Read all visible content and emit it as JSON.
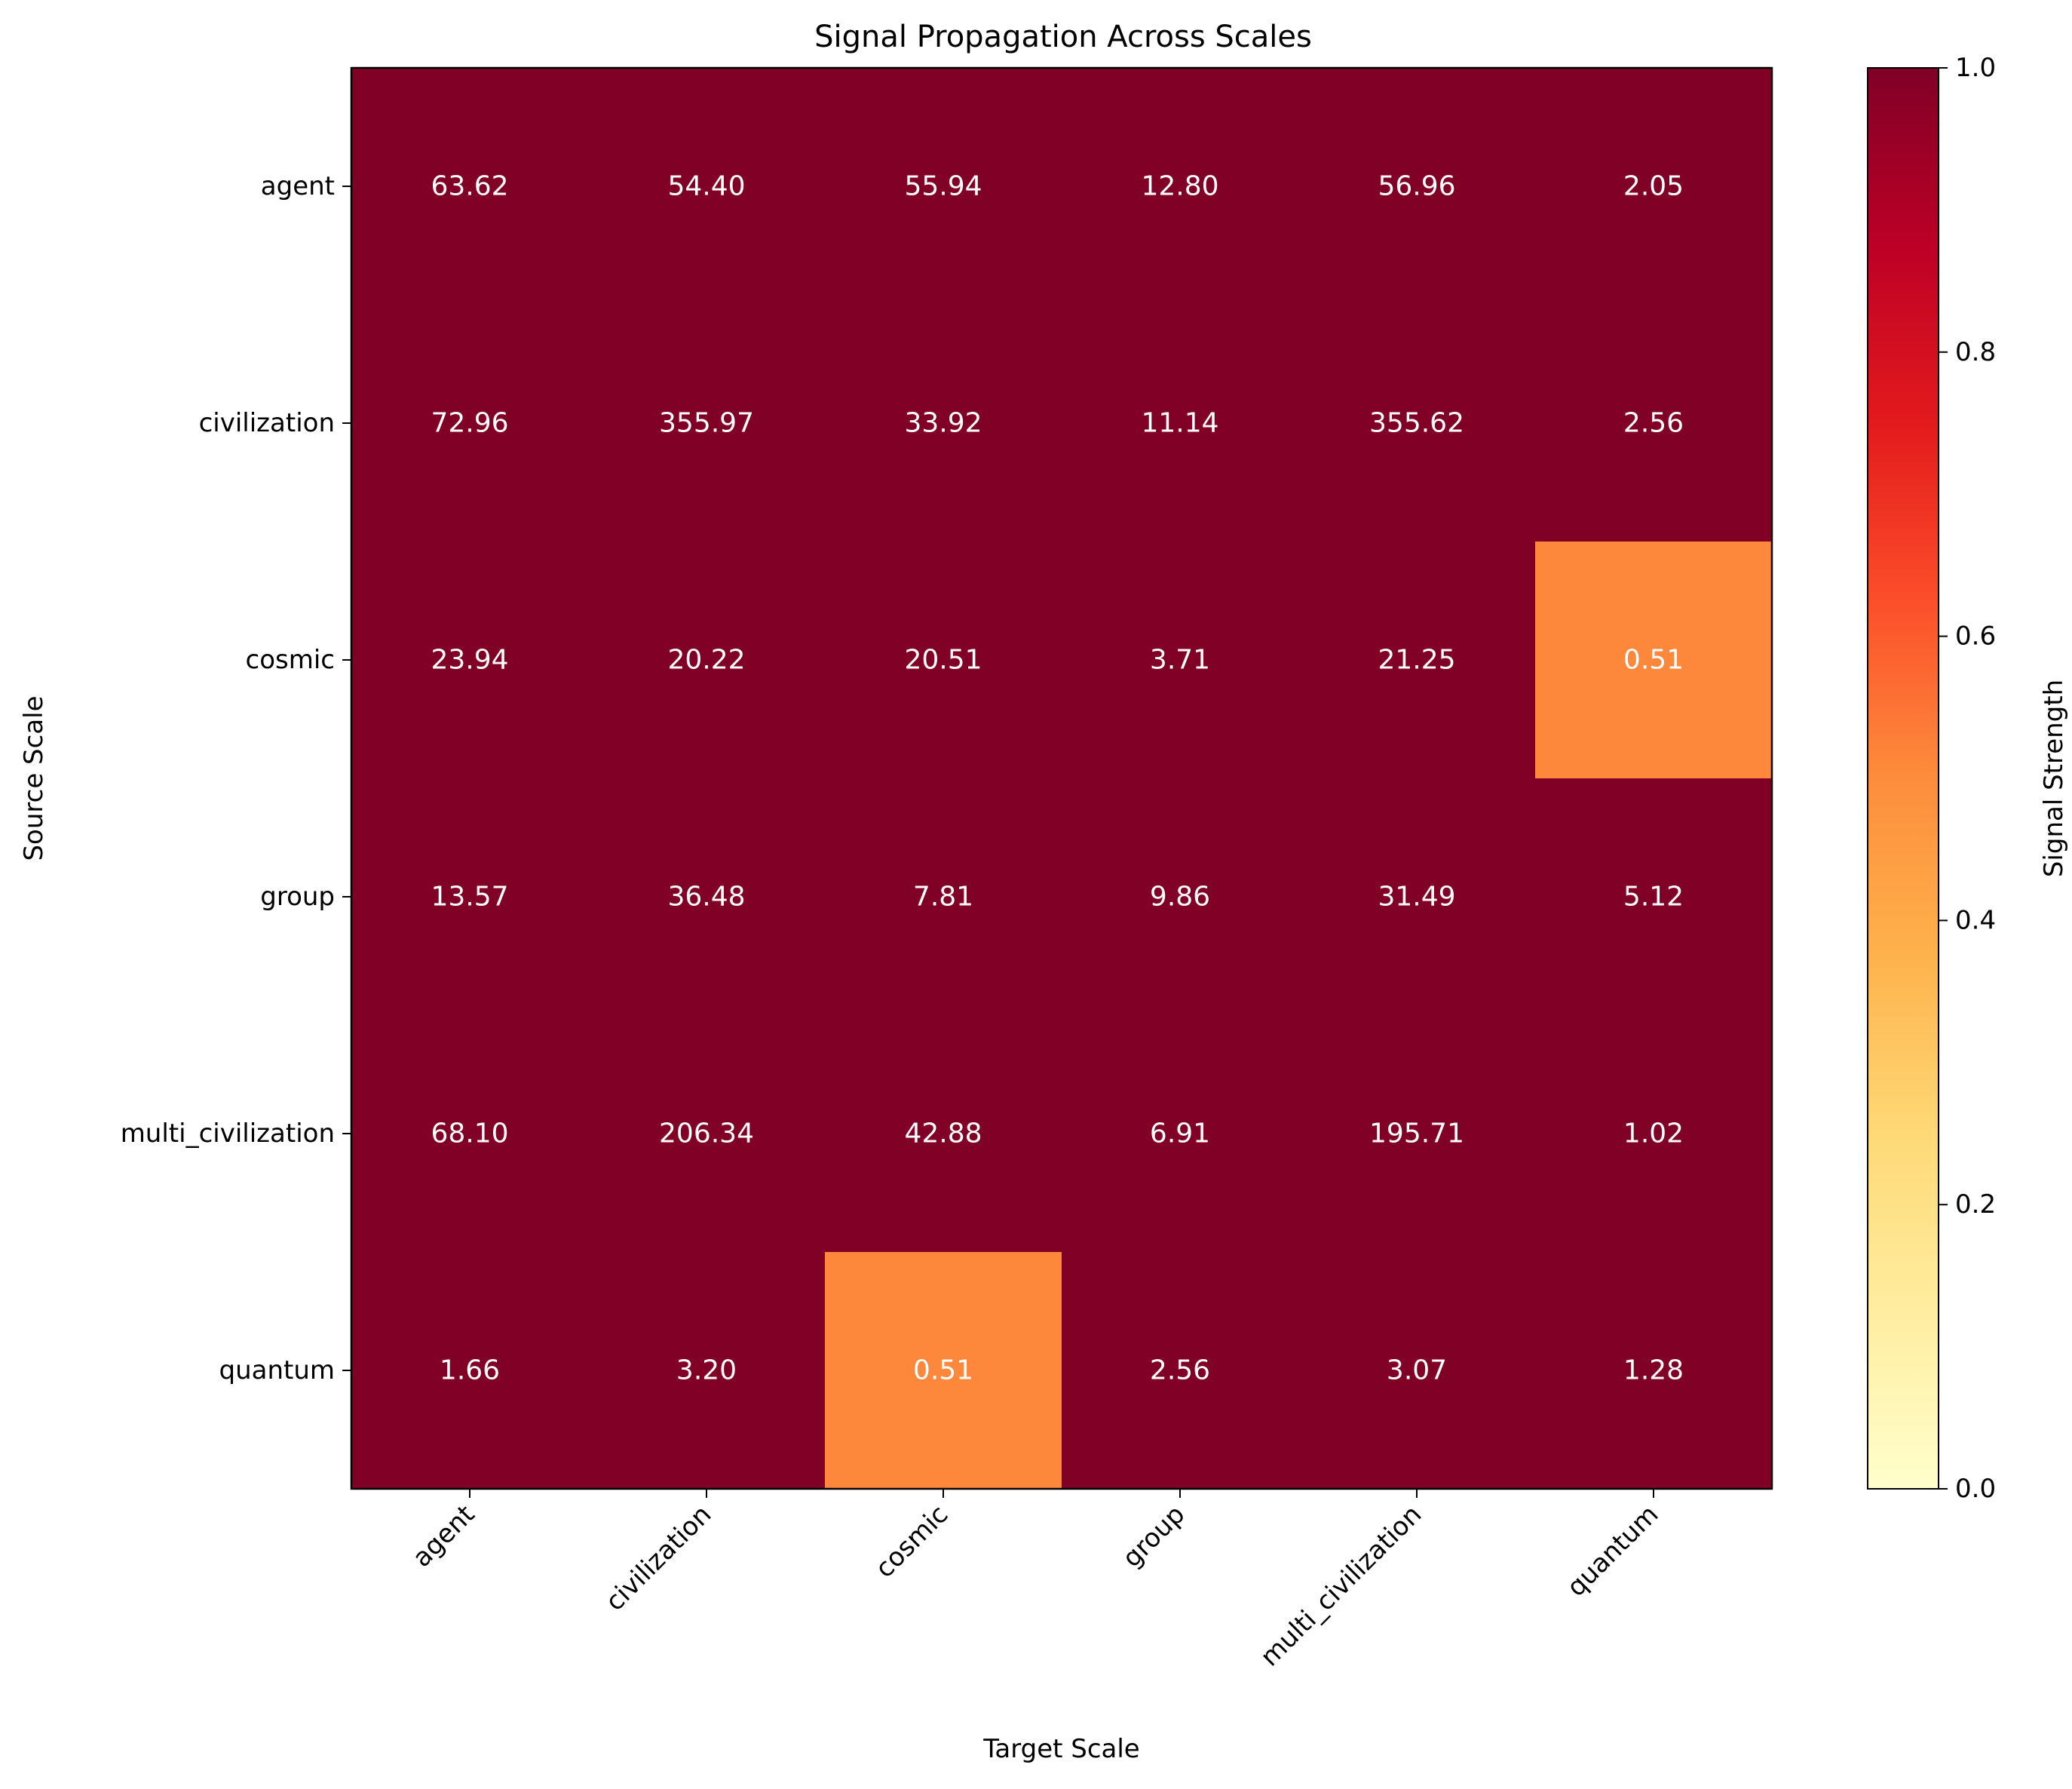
{
  "chart_data": {
    "type": "heatmap",
    "title": "Signal Propagation Across Scales",
    "xlabel": "Target Scale",
    "ylabel": "Source Scale",
    "x_categories": [
      "agent",
      "civilization",
      "cosmic",
      "group",
      "multi_civilization",
      "quantum"
    ],
    "y_categories": [
      "agent",
      "civilization",
      "cosmic",
      "group",
      "multi_civilization",
      "quantum"
    ],
    "values": [
      [
        63.62,
        54.4,
        55.94,
        12.8,
        56.96,
        2.05
      ],
      [
        72.96,
        355.97,
        33.92,
        11.14,
        355.62,
        2.56
      ],
      [
        23.94,
        20.22,
        20.51,
        3.71,
        21.25,
        0.51
      ],
      [
        13.57,
        36.48,
        7.81,
        9.86,
        31.49,
        5.12
      ],
      [
        68.1,
        206.34,
        42.88,
        6.91,
        195.71,
        1.02
      ],
      [
        1.66,
        3.2,
        0.51,
        2.56,
        3.07,
        1.28
      ]
    ],
    "value_labels": [
      [
        "63.62",
        "54.40",
        "55.94",
        "12.80",
        "56.96",
        "2.05"
      ],
      [
        "72.96",
        "355.97",
        "33.92",
        "11.14",
        "355.62",
        "2.56"
      ],
      [
        "23.94",
        "20.22",
        "20.51",
        "3.71",
        "21.25",
        "0.51"
      ],
      [
        "13.57",
        "36.48",
        "7.81",
        "9.86",
        "31.49",
        "5.12"
      ],
      [
        "68.10",
        "206.34",
        "42.88",
        "6.91",
        "195.71",
        "1.02"
      ],
      [
        "1.66",
        "3.20",
        "0.51",
        "2.56",
        "3.07",
        "1.28"
      ]
    ],
    "color_range": [
      0,
      1
    ],
    "colormap": "YlOrRd",
    "colorbar": {
      "label": "Signal Strength",
      "ticks": [
        0.0,
        0.2,
        0.4,
        0.6,
        0.8,
        1.0
      ],
      "tick_labels": [
        "0.0",
        "0.2",
        "0.4",
        "0.6",
        "0.8",
        "1.0"
      ],
      "colors": [
        "#ffffcc",
        "#ffeda0",
        "#fed976",
        "#feb24c",
        "#fd8d3c",
        "#fc4e2a",
        "#e31a1c",
        "#bd0026",
        "#800026"
      ]
    },
    "annotation_color": "#ffffff"
  }
}
